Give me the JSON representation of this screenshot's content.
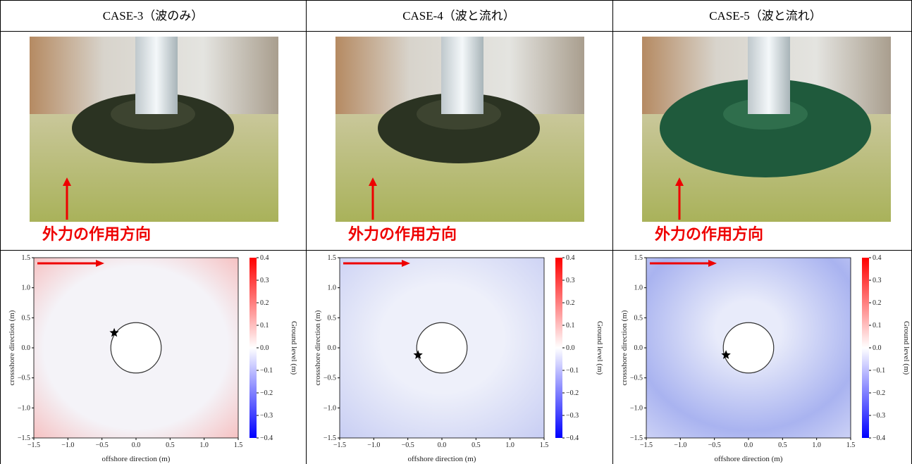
{
  "header": {
    "columns": [
      "CASE-3（波のみ）",
      "CASE-4（波と流れ）",
      "CASE-5（波と流れ）"
    ]
  },
  "photos": {
    "labels": [
      "外力の作用方向",
      "外力の作用方向",
      "外力の作用方向"
    ]
  },
  "heatmaps": {
    "x_label": "offshore direction (m)",
    "y_label": "crossshore direction (m)",
    "colorbar_label": "Ground level (m)",
    "xlim": [
      -1.5,
      1.5
    ],
    "ylim": [
      -1.5,
      1.5
    ],
    "xticks": [
      {
        "value": -1.5,
        "label": "−1.5"
      },
      {
        "value": -1,
        "label": "−1.0"
      },
      {
        "value": -0.5,
        "label": "−0.5"
      },
      {
        "value": 0,
        "label": "0.0"
      },
      0.5,
      {
        "value": 1,
        "label": "1.0"
      },
      1.5
    ],
    "yticks": [
      {
        "value": -1.5,
        "label": "−1.5"
      },
      {
        "value": -1,
        "label": "−1.0"
      },
      {
        "value": -0.5,
        "label": "−0.5"
      },
      {
        "value": 0,
        "label": "0.0"
      },
      0.5,
      {
        "value": 1,
        "label": "1.0"
      },
      1.5
    ],
    "colorbar_lim": [
      -0.4,
      0.4
    ],
    "colorbar_ticks": [
      0.4,
      0.3,
      0.2,
      0.1,
      {
        "value": 0,
        "label": "0.0"
      },
      {
        "value": -0.1,
        "label": "−0.1"
      },
      {
        "value": -0.2,
        "label": "−0.2"
      },
      {
        "value": -0.3,
        "label": "−0.3"
      },
      {
        "value": -0.4,
        "label": "−0.4"
      }
    ]
  }
}
